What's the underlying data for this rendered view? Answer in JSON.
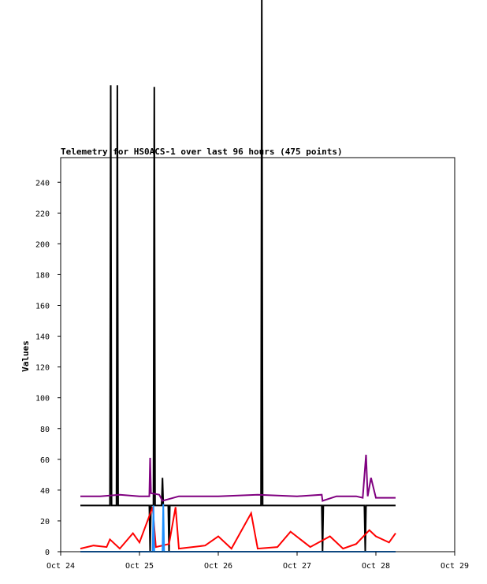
{
  "chart_data": {
    "type": "line",
    "title": "Telemetry for HS0ACS-1 over last 96 hours (475 points)",
    "xlabel": "",
    "ylabel": "Values",
    "xlim": [
      "2023-10-24T00:00",
      "2023-10-29T00:00"
    ],
    "ylim": [
      0,
      256
    ],
    "x_ticks": [
      "Oct 24",
      "Oct 25",
      "Oct 26",
      "Oct 27",
      "Oct 28",
      "Oct 29"
    ],
    "y_ticks": [
      0,
      20,
      40,
      60,
      80,
      100,
      120,
      140,
      160,
      180,
      200,
      220,
      240
    ],
    "grid": false,
    "legend": "none",
    "series": [
      {
        "color": "#000000",
        "points": [
          [
            "2023-10-24T06:00",
            30
          ],
          [
            "2023-10-24T15:00",
            30
          ],
          [
            "2023-10-24T15:15",
            303
          ],
          [
            "2023-10-24T15:30",
            30
          ],
          [
            "2023-10-24T17:00",
            30
          ],
          [
            "2023-10-24T17:15",
            303
          ],
          [
            "2023-10-24T17:30",
            30
          ],
          [
            "2023-10-25T03:00",
            30
          ],
          [
            "2023-10-25T03:15",
            0
          ],
          [
            "2023-10-25T03:30",
            30
          ],
          [
            "2023-10-25T04:15",
            30
          ],
          [
            "2023-10-25T04:30",
            302
          ],
          [
            "2023-10-25T04:45",
            30
          ],
          [
            "2023-10-25T06:45",
            30
          ],
          [
            "2023-10-25T07:00",
            48
          ],
          [
            "2023-10-25T07:15",
            30
          ],
          [
            "2023-10-25T08:45",
            30
          ],
          [
            "2023-10-25T09:00",
            0
          ],
          [
            "2023-10-25T09:15",
            30
          ],
          [
            "2023-10-26T13:00",
            30
          ],
          [
            "2023-10-26T13:15",
            360
          ],
          [
            "2023-10-26T13:30",
            30
          ],
          [
            "2023-10-27T07:30",
            30
          ],
          [
            "2023-10-27T07:45",
            0
          ],
          [
            "2023-10-27T08:00",
            30
          ],
          [
            "2023-10-27T20:30",
            30
          ],
          [
            "2023-10-27T20:45",
            0
          ],
          [
            "2023-10-27T21:00",
            30
          ],
          [
            "2023-10-28T06:00",
            30
          ]
        ]
      },
      {
        "color": "#800080",
        "points": [
          [
            "2023-10-24T06:00",
            36
          ],
          [
            "2023-10-24T12:00",
            36
          ],
          [
            "2023-10-24T18:00",
            37
          ],
          [
            "2023-10-25T00:00",
            36
          ],
          [
            "2023-10-25T03:00",
            36
          ],
          [
            "2023-10-25T03:15",
            61
          ],
          [
            "2023-10-25T03:30",
            38
          ],
          [
            "2023-10-25T06:00",
            37
          ],
          [
            "2023-10-25T07:00",
            33
          ],
          [
            "2023-10-25T12:00",
            36
          ],
          [
            "2023-10-26T00:00",
            36
          ],
          [
            "2023-10-26T12:00",
            37
          ],
          [
            "2023-10-27T00:00",
            36
          ],
          [
            "2023-10-27T07:30",
            37
          ],
          [
            "2023-10-27T07:45",
            33
          ],
          [
            "2023-10-27T12:00",
            36
          ],
          [
            "2023-10-27T18:00",
            36
          ],
          [
            "2023-10-27T20:00",
            35
          ],
          [
            "2023-10-27T21:00",
            63
          ],
          [
            "2023-10-27T21:30",
            36
          ],
          [
            "2023-10-27T22:30",
            48
          ],
          [
            "2023-10-28T00:00",
            35
          ],
          [
            "2023-10-28T06:00",
            35
          ]
        ]
      },
      {
        "color": "#ff0000",
        "points": [
          [
            "2023-10-24T06:00",
            2
          ],
          [
            "2023-10-24T10:00",
            4
          ],
          [
            "2023-10-24T14:00",
            3
          ],
          [
            "2023-10-24T15:00",
            8
          ],
          [
            "2023-10-24T18:00",
            2
          ],
          [
            "2023-10-24T22:00",
            12
          ],
          [
            "2023-10-25T00:00",
            6
          ],
          [
            "2023-10-25T04:00",
            29
          ],
          [
            "2023-10-25T05:00",
            3
          ],
          [
            "2023-10-25T09:00",
            5
          ],
          [
            "2023-10-25T11:00",
            29
          ],
          [
            "2023-10-25T12:00",
            2
          ],
          [
            "2023-10-25T20:00",
            4
          ],
          [
            "2023-10-26T00:00",
            10
          ],
          [
            "2023-10-26T04:00",
            2
          ],
          [
            "2023-10-26T10:00",
            25
          ],
          [
            "2023-10-26T12:00",
            2
          ],
          [
            "2023-10-26T18:00",
            3
          ],
          [
            "2023-10-26T22:00",
            13
          ],
          [
            "2023-10-27T04:00",
            3
          ],
          [
            "2023-10-27T10:00",
            10
          ],
          [
            "2023-10-27T14:00",
            2
          ],
          [
            "2023-10-27T18:00",
            5
          ],
          [
            "2023-10-27T22:00",
            14
          ],
          [
            "2023-10-28T00:00",
            10
          ],
          [
            "2023-10-28T04:00",
            6
          ],
          [
            "2023-10-28T06:00",
            12
          ]
        ]
      },
      {
        "color": "#1e90ff",
        "points": [
          [
            "2023-10-24T06:00",
            0
          ],
          [
            "2023-10-25T04:00",
            0
          ],
          [
            "2023-10-25T04:15",
            30
          ],
          [
            "2023-10-25T04:30",
            0
          ],
          [
            "2023-10-25T07:00",
            0
          ],
          [
            "2023-10-25T07:15",
            31
          ],
          [
            "2023-10-25T07:30",
            0
          ],
          [
            "2023-10-28T06:00",
            0
          ]
        ]
      }
    ]
  }
}
